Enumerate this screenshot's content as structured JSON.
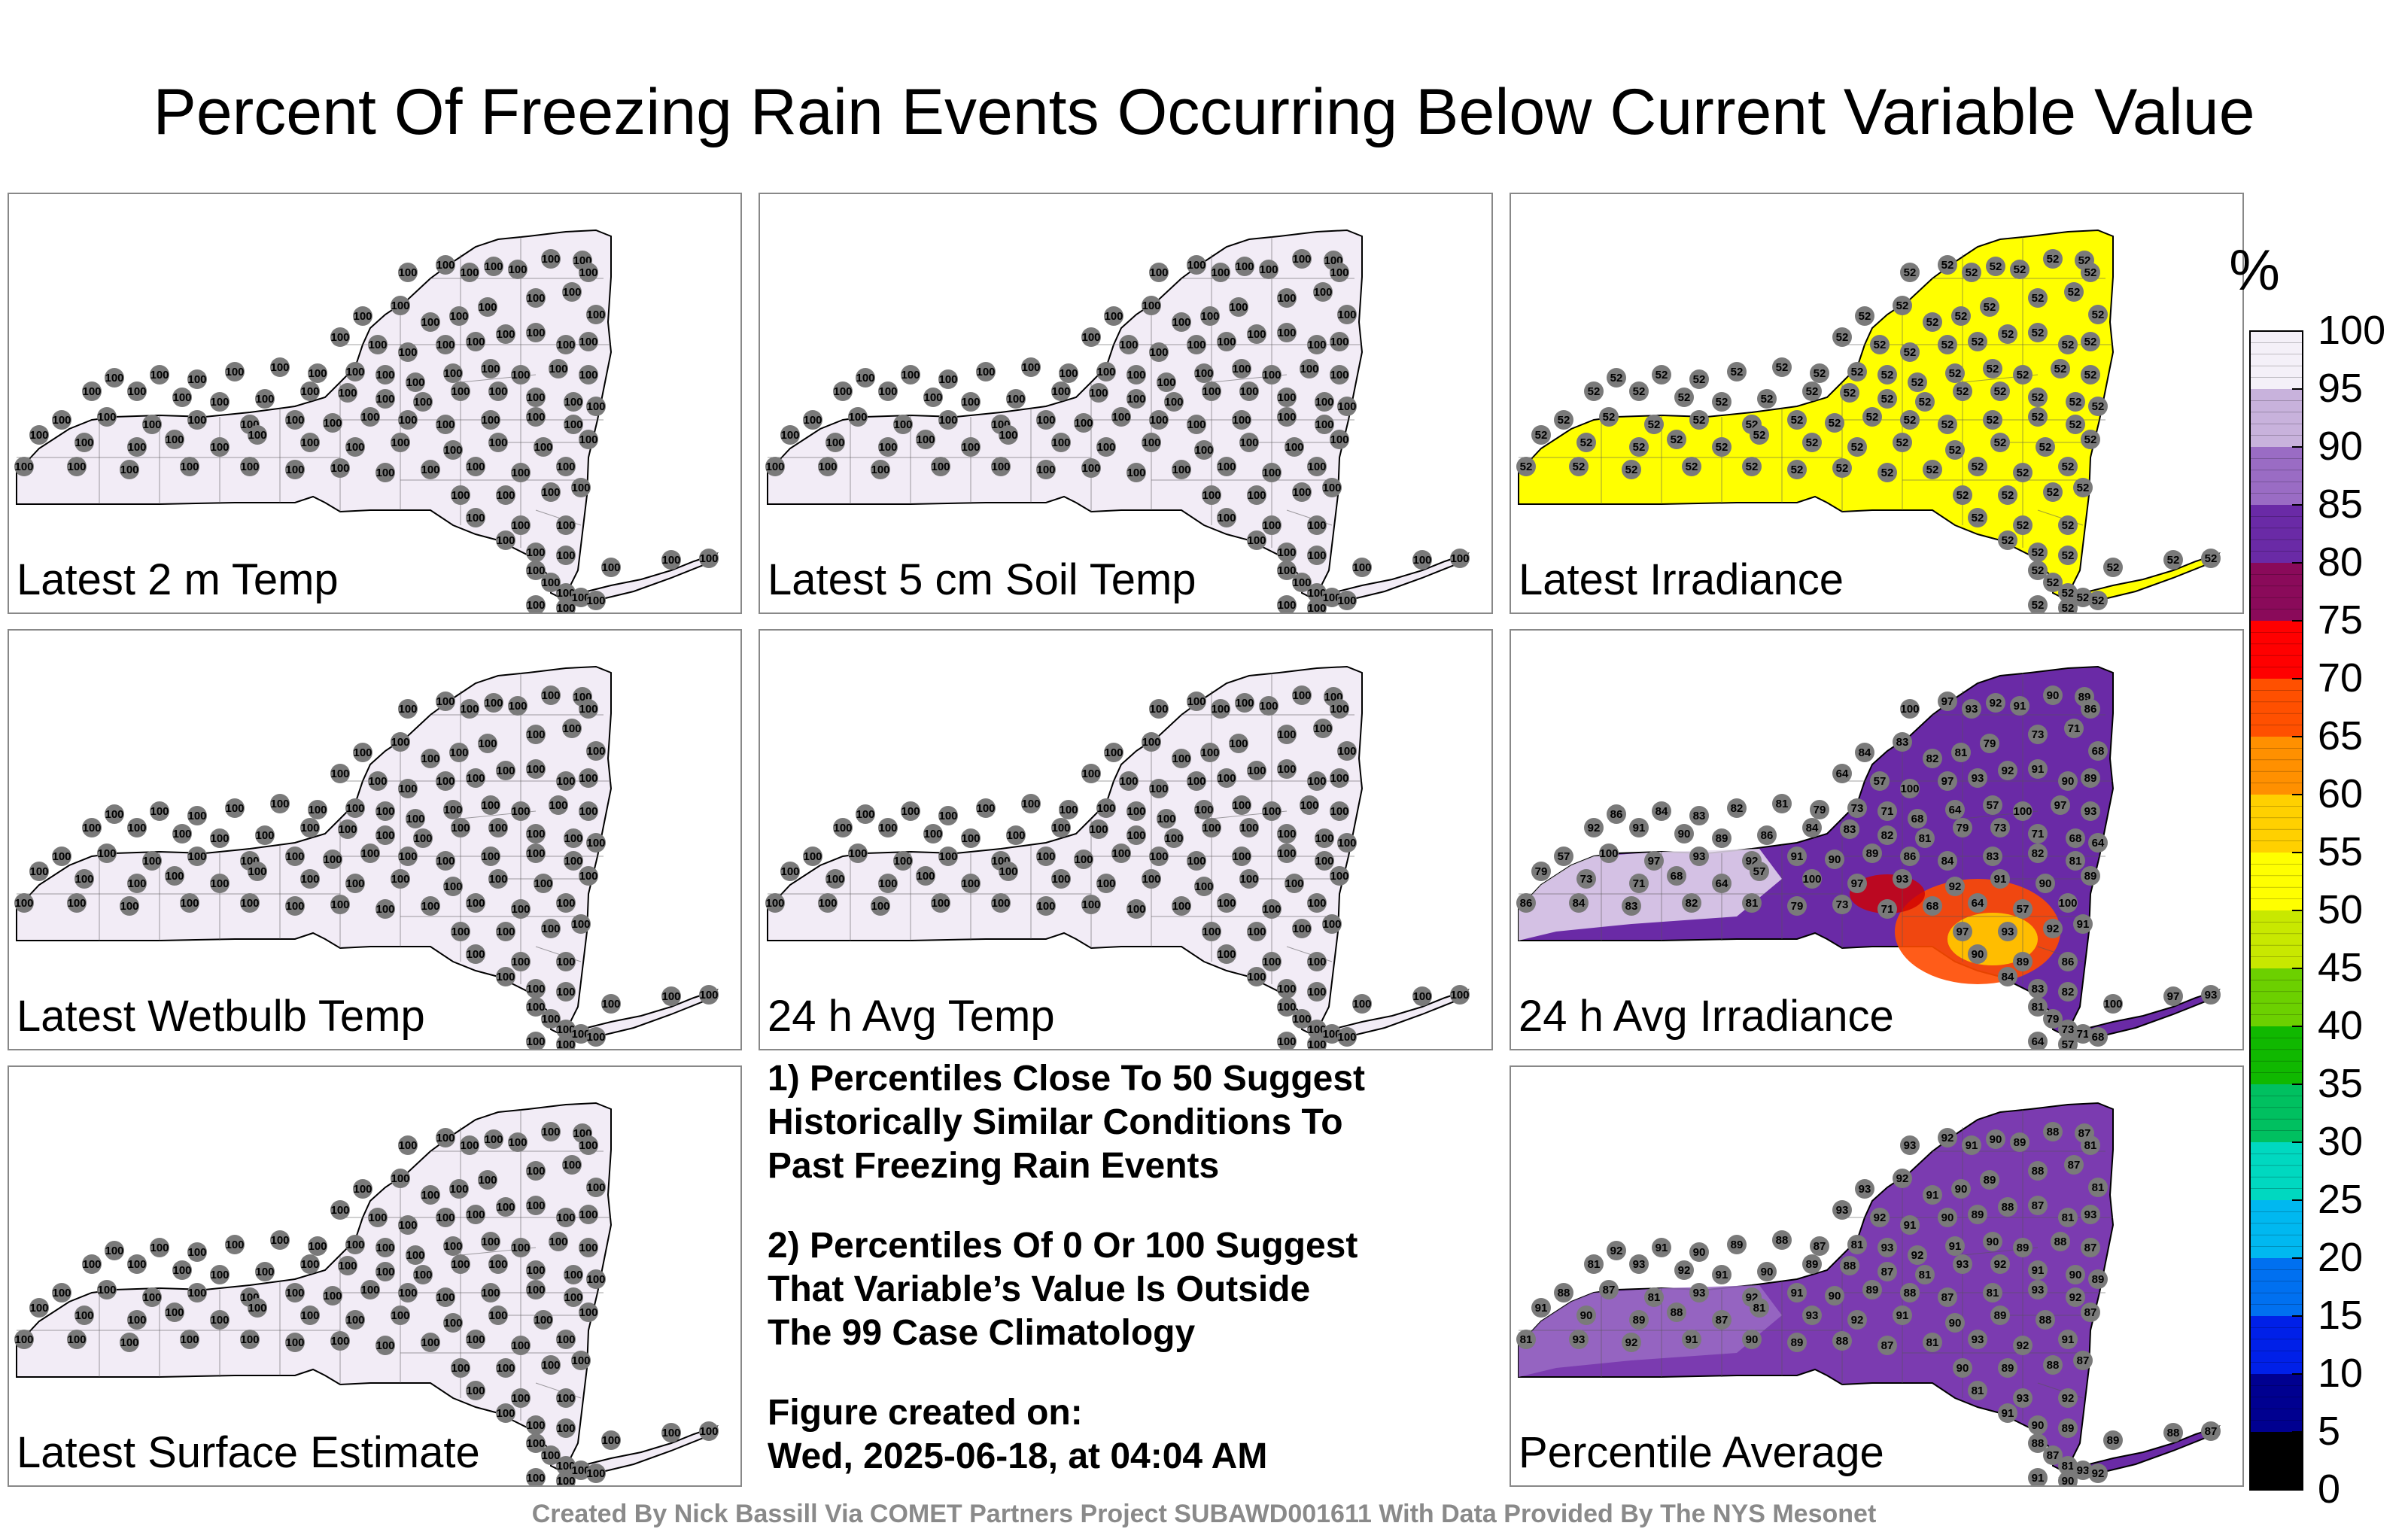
{
  "title": "Percent Of Freezing Rain Events Occurring Below Current Variable Value",
  "panels": [
    {
      "label": "Latest 2 m Temp",
      "fill": "#f2ecf6",
      "values": [
        "100"
      ]
    },
    {
      "label": "Latest 5 cm Soil Temp",
      "fill": "#f2ecf6",
      "values": [
        "100"
      ]
    },
    {
      "label": "Latest Irradiance",
      "fill": "#ffff00",
      "values": [
        "52"
      ]
    },
    {
      "label": "Latest Wetbulb Temp",
      "fill": "#f2ecf6",
      "values": [
        "100"
      ]
    },
    {
      "label": "24 h Avg Temp",
      "fill": "#f2ecf6",
      "values": [
        "100"
      ]
    },
    {
      "label": "24 h Avg Irradiance",
      "fill": "#6a2aa6",
      "values": [
        "100",
        "97",
        "93",
        "92",
        "91",
        "90",
        "89",
        "86",
        "84",
        "83",
        "82",
        "81",
        "79",
        "73",
        "71",
        "68",
        "64",
        "57"
      ]
    },
    {
      "label": "Latest Surface Estimate",
      "fill": "#f2ecf6",
      "values": [
        "100"
      ]
    },
    {
      "label": "Percentile Average",
      "fill": "#7b3bb0",
      "values": [
        "93",
        "92",
        "91",
        "90",
        "89",
        "88",
        "87",
        "81"
      ]
    }
  ],
  "notes": {
    "note1": "1) Percentiles Close To 50 Suggest\nHistorically Similar Conditions To\nPast Freezing Rain Events",
    "note2": "2) Percentiles Of 0 Or 100 Suggest\nThat Variable’s Value Is Outside\nThe 99 Case Climatology",
    "created": "Figure created on:\nWed, 2025-06-18, at 04:04 AM"
  },
  "colorbar": {
    "unit": "%",
    "ticks": [
      "100",
      "95",
      "90",
      "85",
      "80",
      "75",
      "70",
      "65",
      "60",
      "55",
      "50",
      "45",
      "40",
      "35",
      "30",
      "25",
      "20",
      "15",
      "10",
      "5",
      "0"
    ],
    "colors": [
      "#f4f0f8",
      "#c8b2dc",
      "#9a6cc4",
      "#6a2aa6",
      "#8a0a5a",
      "#ff0000",
      "#ff5000",
      "#ff9000",
      "#ffd000",
      "#ffff00",
      "#c8e800",
      "#6cd000",
      "#10b800",
      "#00c060",
      "#00d8c0",
      "#00b8f0",
      "#0070f0",
      "#0020e8",
      "#000090",
      "#000000"
    ]
  },
  "footer": "Created By Nick Bassill Via COMET Partners Project SUBAWD001611 With Data Provided By The NYS Mesonet"
}
